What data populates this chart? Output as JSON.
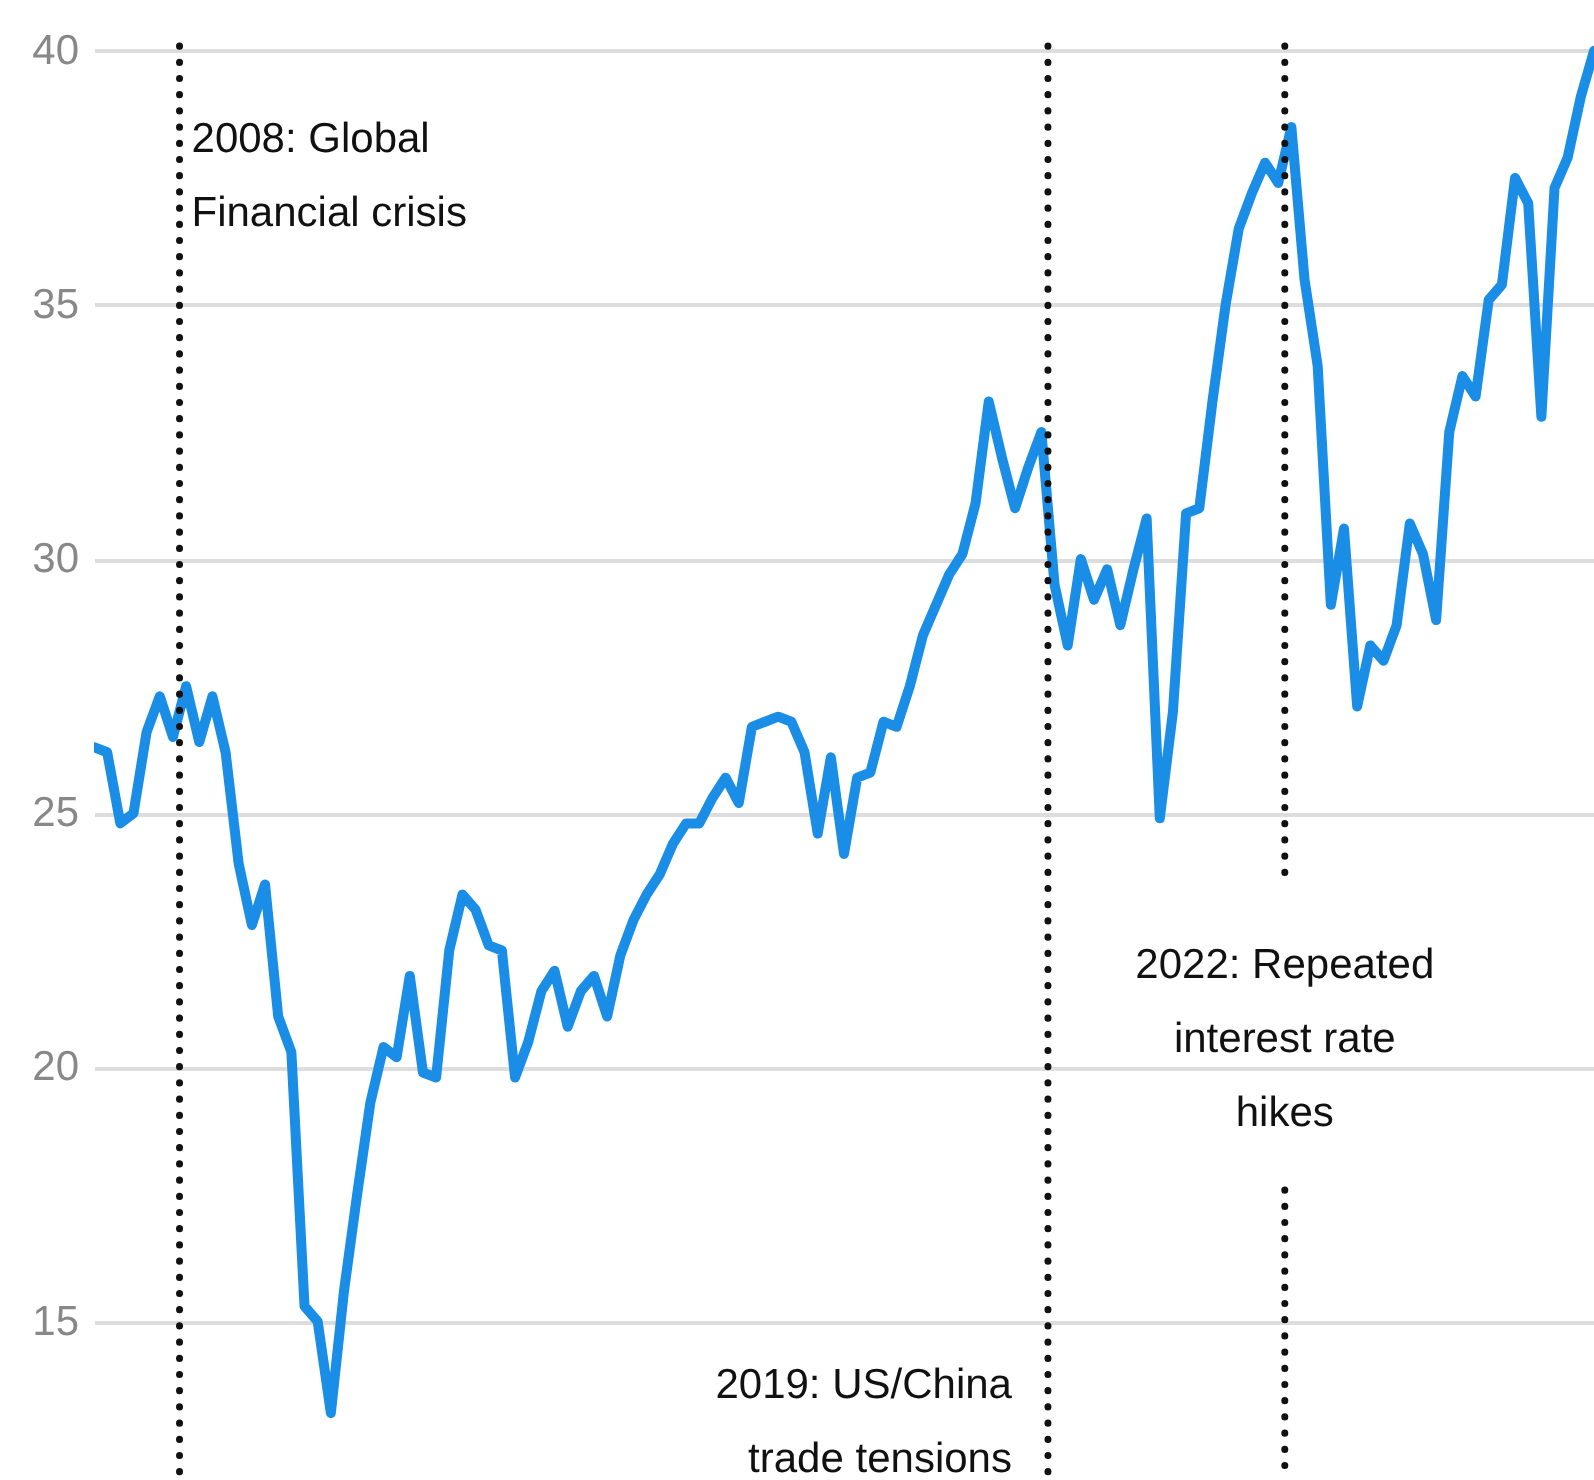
{
  "chart_data": {
    "type": "line",
    "color": "#1a8ee6",
    "line_style": "solid",
    "grid": "y",
    "tick_labels": "y",
    "ylim": [
      12,
      41
    ],
    "yticks": [
      15,
      20,
      25,
      30,
      35,
      40
    ],
    "categories": [
      null,
      null,
      null,
      null,
      null,
      null,
      null,
      null,
      null,
      null,
      null,
      null,
      null,
      null,
      null,
      null,
      null,
      null,
      null,
      null,
      null,
      null,
      null,
      null,
      null,
      null,
      null,
      null,
      null,
      null,
      null,
      null,
      null,
      null,
      null,
      null,
      null,
      null,
      null,
      null,
      null,
      null,
      null,
      null,
      null,
      null,
      null,
      null,
      null,
      null,
      null,
      null,
      null,
      null,
      null,
      null,
      null,
      null,
      null,
      null,
      null,
      null,
      null,
      null,
      null,
      null,
      null,
      null,
      null,
      null,
      null,
      null,
      null,
      null,
      null,
      null,
      null,
      null,
      null,
      null,
      null,
      null,
      null,
      null,
      null,
      null,
      null,
      null,
      null,
      null,
      null,
      null,
      null,
      null,
      null,
      null,
      null,
      null,
      null,
      null,
      null,
      null,
      null,
      null,
      null,
      null,
      null,
      null,
      null,
      null,
      null,
      null,
      null,
      null,
      null
    ],
    "values": [
      26.3,
      26.2,
      24.8,
      25.0,
      26.6,
      27.3,
      26.5,
      27.5,
      26.4,
      27.3,
      26.2,
      24.0,
      22.8,
      23.6,
      21.0,
      20.3,
      15.3,
      15.0,
      13.2,
      15.6,
      17.5,
      19.3,
      20.4,
      20.2,
      21.8,
      19.9,
      19.8,
      22.3,
      23.4,
      23.1,
      22.4,
      22.3,
      19.8,
      20.5,
      21.5,
      21.9,
      20.8,
      21.5,
      21.8,
      21.0,
      22.2,
      22.9,
      23.4,
      23.8,
      24.4,
      24.8,
      24.8,
      25.3,
      25.7,
      25.2,
      26.7,
      26.8,
      26.9,
      26.8,
      26.2,
      24.6,
      26.1,
      24.2,
      25.7,
      25.8,
      26.8,
      26.7,
      27.5,
      28.5,
      29.1,
      29.7,
      30.1,
      31.1,
      33.1,
      32.0,
      31.0,
      31.8,
      32.5,
      29.5,
      28.3,
      30.0,
      29.2,
      29.8,
      28.7,
      29.8,
      30.8,
      24.9,
      27.0,
      30.9,
      31.0,
      33.1,
      35.0,
      36.5,
      37.2,
      37.8,
      37.4,
      38.5,
      35.5,
      33.8,
      29.1,
      30.6,
      27.1,
      28.3,
      28.0,
      28.7,
      30.7,
      30.1,
      28.8,
      32.5,
      33.6,
      33.2,
      35.1,
      35.4,
      37.5,
      37.0,
      32.8,
      37.3,
      37.9,
      39.1,
      40.0
    ],
    "annotations": [
      "2008: Global\nFinancial crisis",
      "2019: US/China\ntrade tensions",
      "2022: Repeated\ninterest rate\nhikes"
    ]
  }
}
